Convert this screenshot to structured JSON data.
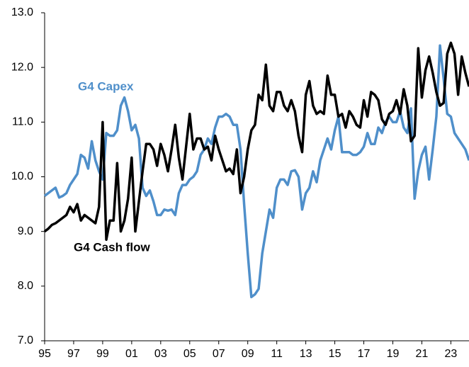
{
  "chart_data": {
    "type": "line",
    "x": [
      1995,
      1995.25,
      1995.5,
      1995.75,
      1996,
      1996.25,
      1996.5,
      1996.75,
      1997,
      1997.25,
      1997.5,
      1997.75,
      1998,
      1998.25,
      1998.5,
      1998.75,
      1999,
      1999.25,
      1999.5,
      1999.75,
      2000,
      2000.25,
      2000.5,
      2000.75,
      2001,
      2001.25,
      2001.5,
      2001.75,
      2002,
      2002.25,
      2002.5,
      2002.75,
      2003,
      2003.25,
      2003.5,
      2003.75,
      2004,
      2004.25,
      2004.5,
      2004.75,
      2005,
      2005.25,
      2005.5,
      2005.75,
      2006,
      2006.25,
      2006.5,
      2006.75,
      2007,
      2007.25,
      2007.5,
      2007.75,
      2008,
      2008.25,
      2008.5,
      2008.75,
      2009,
      2009.25,
      2009.5,
      2009.75,
      2010,
      2010.25,
      2010.5,
      2010.75,
      2011,
      2011.25,
      2011.5,
      2011.75,
      2012,
      2012.25,
      2012.5,
      2012.75,
      2013,
      2013.25,
      2013.5,
      2013.75,
      2014,
      2014.25,
      2014.5,
      2014.75,
      2015,
      2015.25,
      2015.5,
      2015.75,
      2016,
      2016.25,
      2016.5,
      2016.75,
      2017,
      2017.25,
      2017.5,
      2017.75,
      2018,
      2018.25,
      2018.5,
      2018.75,
      2019,
      2019.25,
      2019.5,
      2019.75,
      2020,
      2020.25,
      2020.5,
      2020.75,
      2021,
      2021.25,
      2021.5,
      2021.75,
      2022,
      2022.25,
      2022.5,
      2022.75,
      2023,
      2023.25,
      2023.5,
      2023.75,
      2024,
      2024.25
    ],
    "series": [
      {
        "name": "G4 Capex",
        "color": "#4f8fca",
        "values": [
          9.65,
          9.7,
          9.75,
          9.8,
          9.62,
          9.65,
          9.7,
          9.85,
          9.95,
          10.05,
          10.4,
          10.35,
          10.15,
          10.65,
          10.3,
          10.1,
          9.95,
          10.8,
          10.75,
          10.75,
          10.85,
          11.3,
          11.45,
          11.2,
          10.85,
          10.95,
          10.7,
          9.8,
          9.65,
          9.75,
          9.55,
          9.3,
          9.3,
          9.4,
          9.38,
          9.4,
          9.3,
          9.7,
          9.85,
          9.85,
          9.95,
          10.0,
          10.1,
          10.4,
          10.5,
          10.7,
          10.6,
          10.9,
          11.1,
          11.1,
          11.15,
          11.1,
          10.95,
          10.95,
          10.5,
          9.5,
          8.6,
          7.8,
          7.85,
          7.95,
          8.6,
          9.0,
          9.4,
          9.25,
          9.8,
          9.95,
          9.95,
          9.85,
          10.1,
          10.12,
          10.0,
          9.4,
          9.7,
          9.8,
          10.1,
          9.9,
          10.3,
          10.5,
          10.7,
          10.5,
          10.85,
          11.1,
          10.45,
          10.45,
          10.45,
          10.4,
          10.4,
          10.45,
          10.55,
          10.8,
          10.6,
          10.6,
          10.9,
          10.8,
          11.0,
          11.1,
          11.0,
          11.0,
          11.2,
          10.9,
          10.8,
          11.25,
          9.6,
          10.1,
          10.4,
          10.55,
          9.95,
          10.5,
          11.1,
          12.4,
          11.8,
          11.15,
          11.1,
          10.8,
          10.7,
          10.6,
          10.5,
          10.3
        ]
      },
      {
        "name": "G4 Cash flow",
        "color": "#000000",
        "values": [
          9.0,
          9.05,
          9.12,
          9.15,
          9.2,
          9.25,
          9.3,
          9.45,
          9.35,
          9.5,
          9.2,
          9.3,
          9.25,
          9.2,
          9.15,
          9.45,
          11.0,
          8.85,
          9.2,
          9.2,
          10.25,
          9.0,
          9.2,
          9.6,
          10.35,
          9.0,
          9.55,
          10.1,
          10.6,
          10.6,
          10.5,
          10.2,
          10.6,
          10.4,
          10.1,
          10.5,
          10.95,
          10.35,
          9.95,
          10.55,
          11.15,
          10.5,
          10.7,
          10.7,
          10.5,
          10.55,
          10.3,
          10.75,
          10.5,
          10.3,
          10.1,
          10.15,
          10.05,
          10.5,
          9.7,
          10.0,
          10.5,
          10.85,
          10.95,
          11.5,
          11.4,
          12.05,
          11.3,
          11.2,
          11.55,
          11.55,
          11.3,
          11.2,
          11.4,
          11.2,
          10.75,
          10.45,
          11.5,
          11.75,
          11.3,
          11.15,
          11.2,
          11.15,
          11.85,
          11.5,
          11.5,
          11.1,
          11.15,
          10.9,
          11.2,
          11.1,
          10.95,
          10.9,
          11.4,
          11.1,
          11.55,
          11.5,
          11.4,
          11.05,
          10.95,
          11.15,
          11.2,
          11.4,
          11.15,
          11.6,
          11.3,
          10.65,
          10.75,
          12.35,
          11.45,
          11.95,
          12.2,
          11.9,
          11.55,
          11.3,
          11.35,
          12.25,
          12.45,
          12.25,
          11.5,
          12.2,
          11.9,
          11.65
        ]
      }
    ],
    "xlim": [
      1995,
      2024.25
    ],
    "xticks": [
      {
        "value": 1995,
        "label": "95"
      },
      {
        "value": 1997,
        "label": "97"
      },
      {
        "value": 1999,
        "label": "99"
      },
      {
        "value": 2001,
        "label": "01"
      },
      {
        "value": 2003,
        "label": "03"
      },
      {
        "value": 2005,
        "label": "05"
      },
      {
        "value": 2007,
        "label": "07"
      },
      {
        "value": 2009,
        "label": "09"
      },
      {
        "value": 2011,
        "label": "11"
      },
      {
        "value": 2013,
        "label": "13"
      },
      {
        "value": 2015,
        "label": "15"
      },
      {
        "value": 2017,
        "label": "17"
      },
      {
        "value": 2019,
        "label": "19"
      },
      {
        "value": 2021,
        "label": "21"
      },
      {
        "value": 2023,
        "label": "23"
      }
    ],
    "ylim": [
      7,
      13
    ],
    "yticks": [
      {
        "value": 7,
        "label": "7.0"
      },
      {
        "value": 8,
        "label": "8.0"
      },
      {
        "value": 9,
        "label": "9.0"
      },
      {
        "value": 10,
        "label": "10.0"
      },
      {
        "value": 11,
        "label": "11.0"
      },
      {
        "value": 12,
        "label": "12.0"
      },
      {
        "value": 13,
        "label": "13.0"
      }
    ],
    "grid": false
  }
}
